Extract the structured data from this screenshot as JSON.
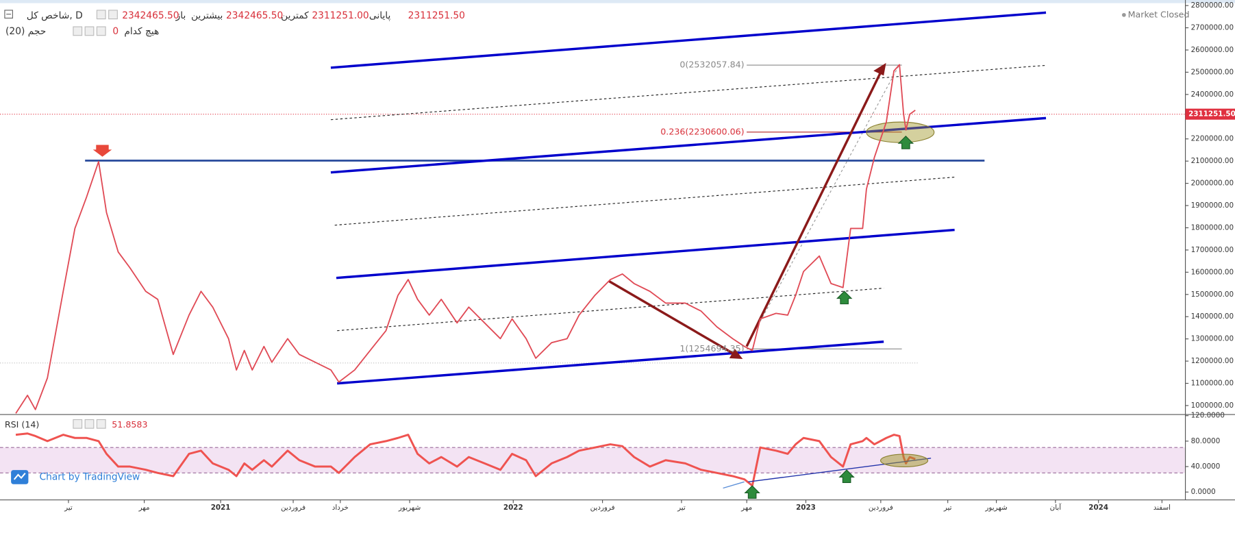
{
  "header": {
    "symbol": "شاخص کل, D",
    "open_label": "باز",
    "open": "2342465.50",
    "high_label": "بیشترین",
    "high": "2342465.50",
    "low_label": "کمترین",
    "low": "2311251.00",
    "close_label": "پایانی",
    "close": "2311251.50",
    "volume_label": "حجم (20)",
    "none_label": "هیچ کدام",
    "none_value": "0",
    "status": "Market Closed",
    "attribution": "Chart by TradingView"
  },
  "chart_data": [
    {
      "type": "line",
      "color": "#e04a55",
      "x": [
        2020.3,
        2020.34,
        2020.367,
        2020.408,
        2020.462,
        2020.502,
        2020.542,
        2020.583,
        2020.61,
        2020.65,
        2020.69,
        2020.744,
        2020.785,
        2020.838,
        2020.892,
        2020.933,
        2020.973,
        2021.027,
        2021.054,
        2021.081,
        2021.108,
        2021.148,
        2021.175,
        2021.229,
        2021.269,
        2021.323,
        2021.377,
        2021.404,
        2021.458,
        2021.511,
        2021.565,
        2021.606,
        2021.641,
        2021.673,
        2021.713,
        2021.754,
        2021.808,
        2021.848,
        2021.902,
        2021.956,
        2021.996,
        2022.044,
        2022.077,
        2022.131,
        2022.184,
        2022.225,
        2022.279,
        2022.332,
        2022.373,
        2022.413,
        2022.467,
        2022.521,
        2022.588,
        2022.642,
        2022.696,
        2022.75,
        2022.79,
        2022.817,
        2022.844,
        2022.898,
        2022.938,
        2022.965,
        2022.992,
        2023.046,
        2023.086,
        2023.127,
        2023.153,
        2023.194,
        2023.207,
        2023.234,
        2023.275,
        2023.301,
        2023.32,
        2023.334,
        2023.342,
        2023.355,
        2023.374
      ],
      "values": [
        965000,
        1046000,
        982000,
        1124000,
        1514000,
        1797000,
        1939000,
        2098000,
        1868000,
        1691000,
        1620000,
        1514000,
        1478000,
        1230000,
        1407000,
        1514000,
        1443000,
        1301000,
        1160000,
        1248000,
        1160000,
        1266000,
        1195000,
        1301000,
        1230000,
        1195000,
        1160000,
        1106000,
        1160000,
        1248000,
        1337000,
        1496000,
        1567000,
        1478000,
        1407000,
        1478000,
        1372000,
        1443000,
        1372000,
        1301000,
        1390000,
        1301000,
        1213000,
        1283000,
        1301000,
        1407000,
        1496000,
        1567000,
        1592000,
        1549000,
        1514000,
        1461000,
        1461000,
        1425000,
        1354000,
        1301000,
        1266000,
        1248000,
        1390000,
        1415000,
        1407000,
        1496000,
        1603000,
        1673000,
        1549000,
        1531000,
        1797000,
        1797000,
        1974000,
        2116000,
        2276000,
        2506000,
        2534000,
        2311000,
        2240000,
        2311000,
        2329000
      ],
      "xlim": [
        2020.246,
        2024.297
      ],
      "ylim": [
        965000,
        2825000
      ],
      "yticks": [
        {
          "value": 1000000,
          "label": "1000000.00"
        },
        {
          "value": 1100000,
          "label": "1100000.00"
        },
        {
          "value": 1200000,
          "label": "1200000.00"
        },
        {
          "value": 1300000,
          "label": "1300000.00"
        },
        {
          "value": 1400000,
          "label": "1400000.00"
        },
        {
          "value": 1500000,
          "label": "1500000.00"
        },
        {
          "value": 1600000,
          "label": "1600000.00"
        },
        {
          "value": 1700000,
          "label": "1700000.00"
        },
        {
          "value": 1800000,
          "label": "1800000.00"
        },
        {
          "value": 1900000,
          "label": "1900000.00"
        },
        {
          "value": 2000000,
          "label": "2000000.00"
        },
        {
          "value": 2100000,
          "label": "2100000.00"
        },
        {
          "value": 2200000,
          "label": "2200000.00"
        },
        {
          "value": 2300000,
          "label": "2300000.00"
        },
        {
          "value": 2400000,
          "label": "2400000.00"
        },
        {
          "value": 2500000,
          "label": "2500000.00"
        },
        {
          "value": 2600000,
          "label": "2600000.00"
        },
        {
          "value": 2700000,
          "label": "2700000.00"
        },
        {
          "value": 2800000,
          "label": "2800000.00"
        }
      ],
      "last_price": {
        "value": 2311251.5,
        "label": "2311251.50"
      },
      "fib_levels": [
        {
          "value": 2532057.84,
          "label": "0(2532057.84)"
        },
        {
          "value": 2230600.06,
          "label": "0.236(2230600.06)"
        },
        {
          "value": 1254694.35,
          "label": "1(1254694.35)"
        }
      ]
    },
    {
      "type": "line",
      "title": "RSI (14)",
      "color": "#ef5350",
      "values": [
        90,
        92,
        88,
        80,
        90,
        85,
        85,
        80,
        60,
        40,
        40,
        35,
        30,
        25,
        60,
        65,
        45,
        35,
        25,
        45,
        35,
        50,
        40,
        65,
        50,
        40,
        40,
        30,
        55,
        75,
        80,
        85,
        90,
        60,
        45,
        55,
        40,
        55,
        45,
        35,
        60,
        50,
        25,
        45,
        55,
        65,
        70,
        75,
        72,
        55,
        40,
        50,
        45,
        35,
        30,
        25,
        20,
        10,
        70,
        65,
        60,
        75,
        85,
        80,
        55,
        40,
        75,
        80,
        85,
        75,
        85,
        90,
        88,
        55,
        45,
        55,
        51.8583
      ],
      "xlim": [
        2020.246,
        2024.297
      ],
      "xticks": [
        {
          "value": 2020.48,
          "label": "تیر"
        },
        {
          "value": 2020.739,
          "label": "مهر"
        },
        2021,
        {
          "value": 2021.248,
          "label": "فروردین"
        },
        {
          "value": 2021.409,
          "label": "خرداد"
        },
        {
          "value": 2021.646,
          "label": "شهریور"
        },
        2022,
        {
          "value": 2022.305,
          "label": "فروردین"
        },
        {
          "value": 2022.575,
          "label": "تیر"
        },
        {
          "value": 2022.798,
          "label": "مهر"
        },
        2023,
        {
          "value": 2023.256,
          "label": "فروردین"
        },
        {
          "value": 2023.485,
          "label": "تیر"
        },
        {
          "value": 2023.651,
          "label": "شهریور"
        },
        {
          "value": 2023.853,
          "label": "آبان"
        },
        2024,
        {
          "value": 2024.217,
          "label": "اسفند"
        }
      ],
      "ylim": [
        -12.4,
        121.2
      ],
      "yticks": [
        {
          "value": 0,
          "label": "0.0000"
        },
        {
          "value": 40,
          "label": "40.0000"
        },
        {
          "value": 80,
          "label": "80.0000"
        },
        {
          "value": 120,
          "label": "120.0000"
        }
      ],
      "bands": [
        30,
        70
      ]
    }
  ]
}
